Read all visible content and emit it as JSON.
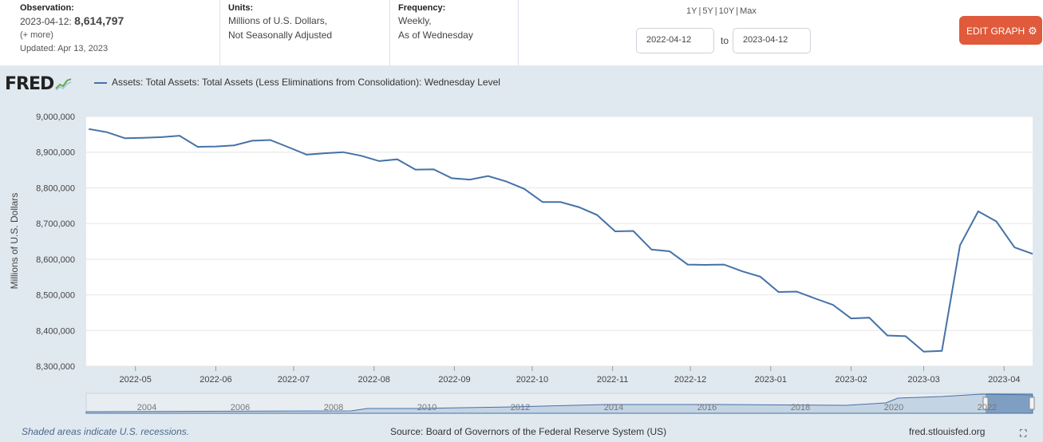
{
  "observation": {
    "label": "Observation:",
    "date": "2023-04-12:",
    "value": "8,614,797",
    "more": "(+ more)",
    "updated": "Updated: Apr 13, 2023"
  },
  "units": {
    "label": "Units:",
    "line1": "Millions of U.S. Dollars,",
    "line2": "Not Seasonally Adjusted"
  },
  "frequency": {
    "label": "Frequency:",
    "line1": "Weekly,",
    "line2": "As of Wednesday"
  },
  "range_buttons": [
    "1Y",
    "5Y",
    "10Y",
    "Max"
  ],
  "date_range": {
    "start": "2022-04-12",
    "to": "to",
    "end": "2023-04-12"
  },
  "edit_button": "EDIT GRAPH",
  "logo": "FRED",
  "legend_label": "Assets: Total Assets: Total Assets (Less Eliminations from Consolidation): Wednesday Level",
  "colors": {
    "series": "#4572a7",
    "edit_button": "#e05a3b",
    "background": "#e1e9f0"
  },
  "chart_data": {
    "type": "line",
    "title": "",
    "ylabel": "Millions of U.S. Dollars",
    "ylim": [
      8300000,
      9000000
    ],
    "y_ticks": [
      "9,000,000",
      "8,900,000",
      "8,800,000",
      "8,700,000",
      "8,600,000",
      "8,500,000",
      "8,400,000",
      "8,300,000"
    ],
    "x_ticks": [
      "2022-05",
      "2022-06",
      "2022-07",
      "2022-08",
      "2022-09",
      "2022-10",
      "2022-11",
      "2022-12",
      "2023-01",
      "2023-02",
      "2023-03",
      "2023-04"
    ],
    "grid": true,
    "series": [
      {
        "name": "Assets: Total Assets: Total Assets (Less Eliminations from Consolidation): Wednesday Level",
        "x": [
          "2022-04-13",
          "2022-04-20",
          "2022-04-27",
          "2022-05-04",
          "2022-05-11",
          "2022-05-18",
          "2022-05-25",
          "2022-06-01",
          "2022-06-08",
          "2022-06-15",
          "2022-06-22",
          "2022-06-29",
          "2022-07-06",
          "2022-07-13",
          "2022-07-20",
          "2022-07-27",
          "2022-08-03",
          "2022-08-10",
          "2022-08-17",
          "2022-08-24",
          "2022-08-31",
          "2022-09-07",
          "2022-09-14",
          "2022-09-21",
          "2022-09-28",
          "2022-10-05",
          "2022-10-12",
          "2022-10-19",
          "2022-10-26",
          "2022-11-02",
          "2022-11-09",
          "2022-11-16",
          "2022-11-23",
          "2022-11-30",
          "2022-12-07",
          "2022-12-14",
          "2022-12-21",
          "2022-12-28",
          "2023-01-04",
          "2023-01-11",
          "2023-01-18",
          "2023-01-25",
          "2023-02-01",
          "2023-02-08",
          "2023-02-15",
          "2023-02-22",
          "2023-03-01",
          "2023-03-08",
          "2023-03-15",
          "2023-03-22",
          "2023-03-29",
          "2023-04-05",
          "2023-04-12"
        ],
        "values": [
          8965000,
          8956000,
          8939000,
          8940000,
          8942000,
          8946000,
          8915000,
          8916000,
          8919000,
          8932000,
          8934000,
          8914000,
          8893000,
          8897000,
          8900000,
          8890000,
          8875000,
          8880000,
          8851000,
          8852000,
          8827000,
          8823000,
          8833000,
          8818000,
          8797000,
          8760000,
          8760000,
          8746000,
          8724000,
          8678000,
          8679000,
          8627000,
          8622000,
          8585000,
          8584000,
          8585000,
          8566000,
          8551000,
          8508000,
          8509000,
          8490000,
          8472000,
          8434000,
          8436000,
          8386000,
          8384000,
          8341000,
          8343000,
          8639000,
          8734000,
          8706000,
          8633000,
          8614797
        ]
      }
    ]
  },
  "navigator": {
    "labels": [
      "2004",
      "2006",
      "2008",
      "2010",
      "2012",
      "2014",
      "2016",
      "2018",
      "2020",
      "2022"
    ]
  },
  "footer": {
    "recession_note": "Shaded areas indicate U.S. recessions.",
    "source": "Source: Board of Governors of the Federal Reserve System (US)",
    "url": "fred.stlouisfed.org"
  }
}
